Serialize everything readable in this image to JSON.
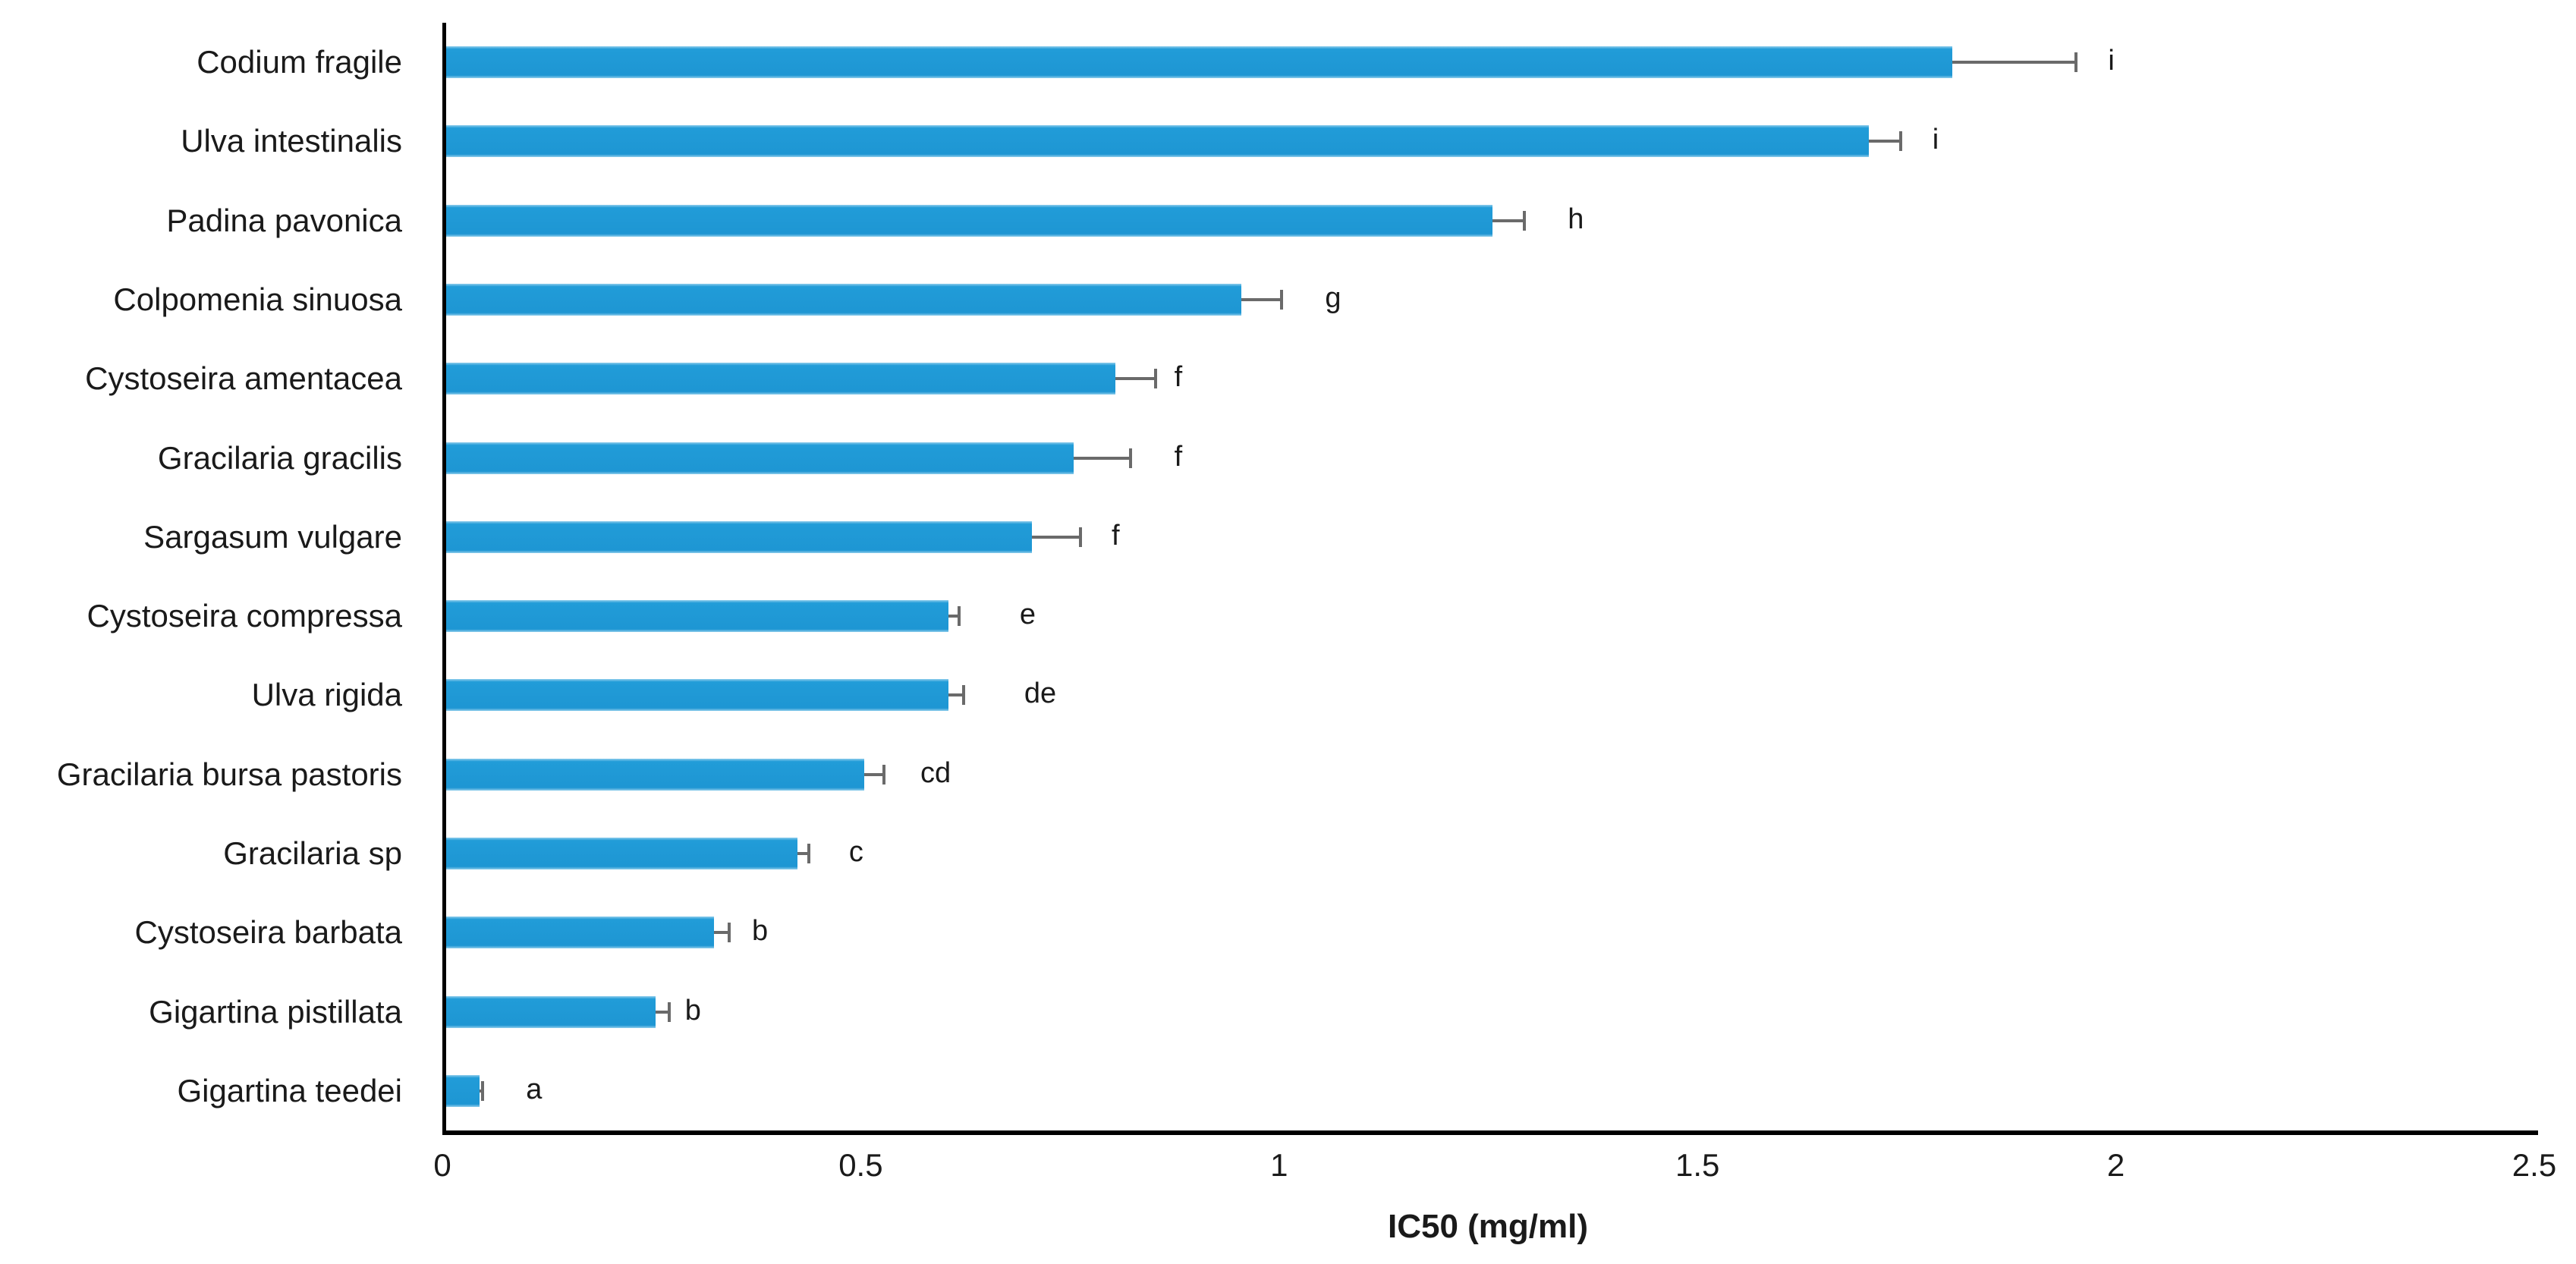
{
  "chart_data": {
    "type": "bar",
    "orientation": "horizontal",
    "title": "",
    "xlabel": "IC50 (mg/ml)",
    "ylabel": "",
    "xlim": [
      0,
      2.5
    ],
    "xticks": [
      "0",
      "0.5",
      "1",
      "1.5",
      "2",
      "2.5"
    ],
    "xtick_values": [
      0,
      0.5,
      1,
      1.5,
      2,
      2.5
    ],
    "grid": false,
    "legend": false,
    "bar_color": "#1E9CD7",
    "error_bar_color": "#6A6A6A",
    "axis_color": "#000000",
    "categories": [
      "Codium fragile",
      "Ulva intestinalis",
      "Padina pavonica",
      "Colpomenia sinuosa",
      "Cystoseira amentacea",
      "Gracilaria gracilis",
      "Sargasum vulgare",
      "Cystoseira compressa",
      "Ulva rigida",
      "Gracilaria bursa pastoris",
      "Gracilaria sp",
      "Cystoseira barbata",
      "Gigartina pistillata",
      "Gigartina teedei"
    ],
    "values": [
      1.8,
      1.7,
      1.25,
      0.95,
      0.8,
      0.75,
      0.7,
      0.6,
      0.6,
      0.5,
      0.42,
      0.32,
      0.25,
      0.04
    ],
    "errors": [
      0.15,
      0.04,
      0.04,
      0.05,
      0.05,
      0.07,
      0.06,
      0.015,
      0.02,
      0.025,
      0.015,
      0.02,
      0.018,
      0.005
    ],
    "significance_letters": [
      "i",
      "i",
      "h",
      "g",
      "f",
      "f",
      "f",
      "e",
      "de",
      "cd",
      "c",
      "b",
      "b",
      "a"
    ],
    "letter_x": [
      1.99,
      1.78,
      1.35,
      1.06,
      0.875,
      0.875,
      0.8,
      0.695,
      0.71,
      0.585,
      0.49,
      0.375,
      0.295,
      0.105
    ]
  }
}
